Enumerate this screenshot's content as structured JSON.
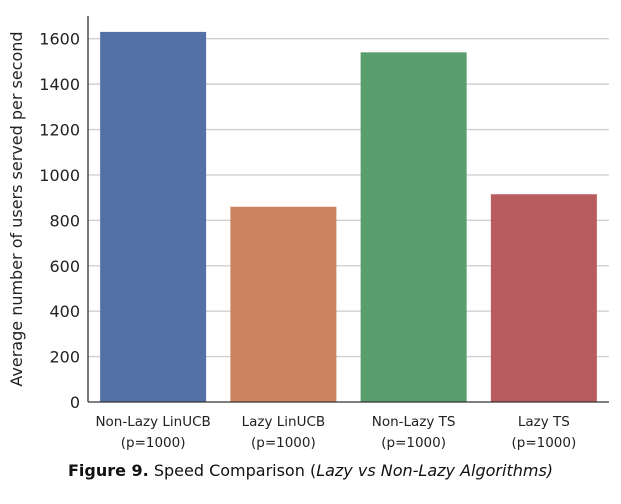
{
  "chart_data": {
    "type": "bar",
    "categories": [
      [
        "Non-Lazy LinUCB",
        "(p=1000)"
      ],
      [
        "Lazy LinUCB",
        "(p=1000)"
      ],
      [
        "Non-Lazy TS",
        "(p=1000)"
      ],
      [
        "Lazy TS",
        "(p=1000)"
      ]
    ],
    "values": [
      1630,
      860,
      1540,
      915
    ],
    "colors": [
      "#5471a6",
      "#cc8460",
      "#5b9e6d",
      "#b85c5f"
    ],
    "xlabel": "",
    "ylabel": "Average number of users served per second",
    "ylim": [
      0,
      1700
    ],
    "yticks": [
      0,
      200,
      400,
      600,
      800,
      1000,
      1200,
      1400,
      1600
    ],
    "grid": true
  },
  "caption": {
    "label": "Figure 9.",
    "text_before": " Speed Comparison (",
    "text_italic": "Lazy vs Non-Lazy Algorithms)",
    "text_after": ""
  }
}
